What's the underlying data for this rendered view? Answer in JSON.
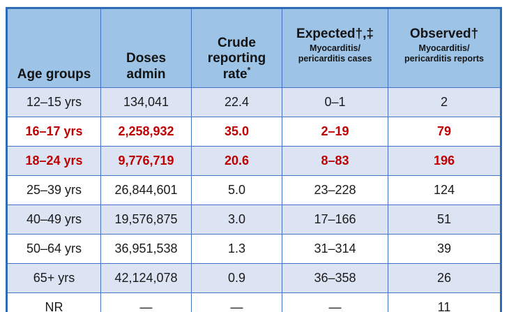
{
  "chart_data": {
    "type": "table",
    "description": "Doses administered, crude reporting rate, and expected vs observed myocarditis/pericarditis by age group",
    "columns": [
      {
        "title": "Age groups"
      },
      {
        "title": "Doses admin"
      },
      {
        "title": "Crude reporting rate",
        "superscript": "*"
      },
      {
        "title": "Expected†,‡",
        "subtitle": [
          "Myocarditis/",
          "pericarditis cases"
        ]
      },
      {
        "title": "Observed†",
        "subtitle": [
          "Myocarditis/",
          "pericarditis reports"
        ]
      }
    ],
    "rows": [
      {
        "age": "12–15 yrs",
        "doses_admin": "134,041",
        "crude_reporting_rate": "22.4",
        "expected_cases": "0–1",
        "observed_reports": "2",
        "emphasis": false
      },
      {
        "age": "16–17 yrs",
        "doses_admin": "2,258,932",
        "crude_reporting_rate": "35.0",
        "expected_cases": "2–19",
        "observed_reports": "79",
        "emphasis": true
      },
      {
        "age": "18–24 yrs",
        "doses_admin": "9,776,719",
        "crude_reporting_rate": "20.6",
        "expected_cases": "8–83",
        "observed_reports": "196",
        "emphasis": true
      },
      {
        "age": "25–39 yrs",
        "doses_admin": "26,844,601",
        "crude_reporting_rate": "5.0",
        "expected_cases": "23–228",
        "observed_reports": "124",
        "emphasis": false
      },
      {
        "age": "40–49 yrs",
        "doses_admin": "19,576,875",
        "crude_reporting_rate": "3.0",
        "expected_cases": "17–166",
        "observed_reports": "51",
        "emphasis": false
      },
      {
        "age": "50–64 yrs",
        "doses_admin": "36,951,538",
        "crude_reporting_rate": "1.3",
        "expected_cases": "31–314",
        "observed_reports": "39",
        "emphasis": false
      },
      {
        "age": "65+ yrs",
        "doses_admin": "42,124,078",
        "crude_reporting_rate": "0.9",
        "expected_cases": "36–358",
        "observed_reports": "26",
        "emphasis": false
      },
      {
        "age": "NR",
        "doses_admin": "—",
        "crude_reporting_rate": "—",
        "expected_cases": "—",
        "observed_reports": "11",
        "emphasis": false
      }
    ],
    "colors": {
      "header_bg": "#9dc3e6",
      "alt_row_bg": "#dce3f3",
      "row_bg": "#ffffff",
      "inner_border": "#4472c4",
      "outer_border": "#2e6db5",
      "emphasis_text": "#c00000",
      "text": "#1a1a1a"
    }
  }
}
